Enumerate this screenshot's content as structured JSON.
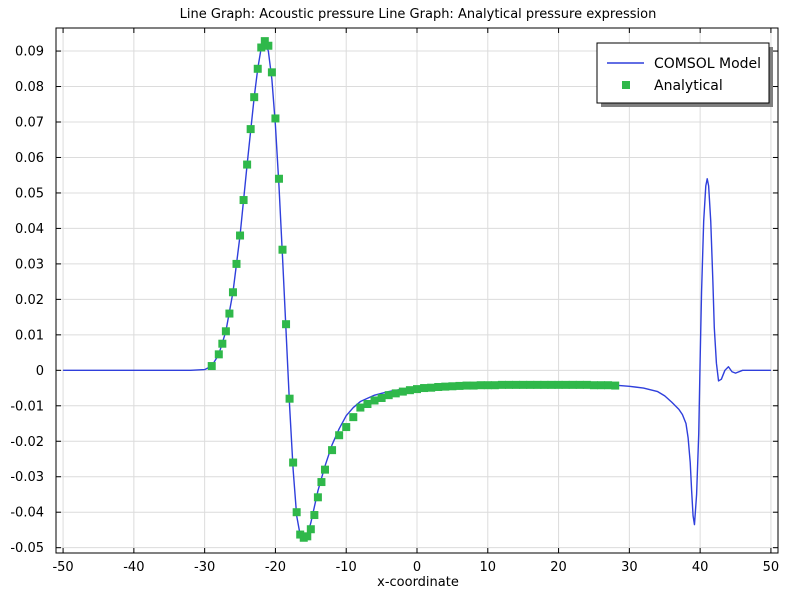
{
  "chart_data": {
    "type": "line",
    "title": "Line Graph: Acoustic pressure  Line Graph: Analytical pressure expression",
    "xlabel": "x-coordinate",
    "ylabel": "",
    "xlim": [
      -51,
      51
    ],
    "ylim": [
      -0.0515,
      0.0965
    ],
    "xticks": [
      -50,
      -40,
      -30,
      -20,
      -10,
      0,
      10,
      20,
      30,
      40,
      50
    ],
    "yticks": [
      -0.05,
      -0.04,
      -0.03,
      -0.02,
      -0.01,
      0,
      0.01,
      0.02,
      0.03,
      0.04,
      0.05,
      0.06,
      0.07,
      0.08,
      0.09
    ],
    "ytick_labels": [
      "-0.05",
      "-0.04",
      "-0.03",
      "-0.02",
      "-0.01",
      "0",
      "0.01",
      "0.02",
      "0.03",
      "0.04",
      "0.05",
      "0.06",
      "0.07",
      "0.08",
      "0.09"
    ],
    "grid": true,
    "legend_position": "top-right",
    "series": [
      {
        "name": "COMSOL Model",
        "style": "line",
        "color": "#2f3fdc",
        "x": [
          -50,
          -40,
          -32,
          -30,
          -29,
          -28,
          -27,
          -26,
          -25,
          -24,
          -23,
          -22.5,
          -22,
          -21.5,
          -21,
          -20.5,
          -20,
          -19.5,
          -19,
          -18.5,
          -18,
          -17.5,
          -17,
          -16.5,
          -16,
          -15.5,
          -15,
          -14.5,
          -14,
          -13,
          -12,
          -11,
          -10,
          -9,
          -8,
          -6,
          -4,
          -2,
          0,
          2,
          4,
          6,
          8,
          10,
          15,
          20,
          25,
          28,
          30,
          32,
          34,
          35,
          36,
          37,
          37.5,
          38,
          38.3,
          38.6,
          38.8,
          39,
          39.2,
          39.5,
          39.8,
          40,
          40.2,
          40.5,
          40.8,
          41,
          41.2,
          41.5,
          41.8,
          42,
          42.3,
          42.6,
          43,
          43.5,
          44,
          44.5,
          45,
          46,
          50
        ],
        "y": [
          0,
          0,
          0,
          0.0002,
          0.0012,
          0.0045,
          0.011,
          0.022,
          0.038,
          0.058,
          0.077,
          0.085,
          0.091,
          0.0928,
          0.09,
          0.082,
          0.069,
          0.052,
          0.032,
          0.011,
          -0.01,
          -0.028,
          -0.041,
          -0.0465,
          -0.0475,
          -0.0465,
          -0.043,
          -0.0385,
          -0.034,
          -0.027,
          -0.021,
          -0.0165,
          -0.0128,
          -0.0105,
          -0.0088,
          -0.007,
          -0.006,
          -0.0053,
          -0.0048,
          -0.0046,
          -0.0045,
          -0.0044,
          -0.0043,
          -0.0042,
          -0.0041,
          -0.0041,
          -0.0042,
          -0.0042,
          -0.0045,
          -0.005,
          -0.006,
          -0.0072,
          -0.009,
          -0.011,
          -0.0125,
          -0.015,
          -0.019,
          -0.026,
          -0.034,
          -0.041,
          -0.0435,
          -0.035,
          -0.018,
          0.003,
          0.022,
          0.042,
          0.052,
          0.054,
          0.052,
          0.042,
          0.025,
          0.012,
          0.002,
          -0.003,
          -0.0025,
          0,
          0.001,
          -0.0004,
          -0.0008,
          0,
          0
        ]
      },
      {
        "name": "Analytical",
        "style": "markers",
        "color": "#2fb84a",
        "x": [
          -29,
          -28,
          -27.5,
          -27,
          -26.5,
          -26,
          -25.5,
          -25,
          -24.5,
          -24,
          -23.5,
          -23,
          -22.5,
          -22,
          -21.5,
          -21,
          -20.5,
          -20,
          -19.5,
          -19,
          -18.5,
          -18,
          -17.5,
          -17,
          -16.5,
          -16,
          -15.5,
          -15,
          -14.5,
          -14,
          -13.5,
          -13,
          -12,
          -11,
          -10,
          -9,
          -8,
          -7,
          -6,
          -5,
          -4,
          -3,
          -2,
          -1,
          0,
          1,
          2,
          3,
          4,
          5,
          6,
          7,
          8,
          9,
          10,
          11,
          12,
          13,
          14,
          15,
          16,
          17,
          18,
          19,
          20,
          21,
          22,
          23,
          24,
          25,
          26,
          27,
          28
        ],
        "y": [
          0.0012,
          0.0045,
          0.0075,
          0.011,
          0.016,
          0.022,
          0.03,
          0.038,
          0.048,
          0.058,
          0.068,
          0.077,
          0.085,
          0.091,
          0.0928,
          0.0915,
          0.084,
          0.071,
          0.054,
          0.034,
          0.013,
          -0.008,
          -0.026,
          -0.04,
          -0.0463,
          -0.0472,
          -0.0468,
          -0.0448,
          -0.0408,
          -0.0358,
          -0.0315,
          -0.028,
          -0.0225,
          -0.0183,
          -0.016,
          -0.0132,
          -0.0105,
          -0.0095,
          -0.0085,
          -0.0078,
          -0.007,
          -0.0065,
          -0.006,
          -0.0056,
          -0.0053,
          -0.005,
          -0.0049,
          -0.0047,
          -0.0046,
          -0.0045,
          -0.0044,
          -0.0043,
          -0.0043,
          -0.0042,
          -0.0042,
          -0.0042,
          -0.0041,
          -0.0041,
          -0.0041,
          -0.0041,
          -0.0041,
          -0.0041,
          -0.0041,
          -0.0041,
          -0.0041,
          -0.0041,
          -0.0041,
          -0.0041,
          -0.0041,
          -0.0042,
          -0.0042,
          -0.0042,
          -0.0043
        ]
      }
    ]
  }
}
